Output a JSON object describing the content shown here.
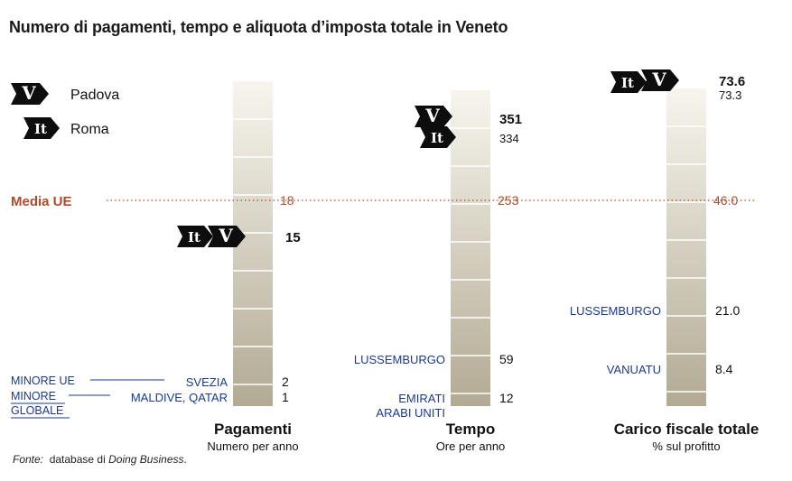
{
  "title": "Numero di pagamenti, tempo e aliquota d’imposta totale in Veneto",
  "source": {
    "label": "Fonte:",
    "text": "database di",
    "italic": "Doing Business",
    "end": "."
  },
  "legend": [
    {
      "badge": "V",
      "label": "Padova"
    },
    {
      "badge": "It",
      "label": "Roma"
    }
  ],
  "reference": {
    "label": "Media UE",
    "color": "#b04a2a"
  },
  "colors": {
    "label_blue": "#1a3a8c",
    "reference": "#b04a2a",
    "bar_top": "#f7f5ee",
    "bar_bottom": "#b2aa93"
  },
  "chart_data": [
    {
      "type": "bar",
      "title": "Pagamenti",
      "subtitle": "Numero per anno",
      "padova": 15,
      "roma": 15,
      "badge_value": "15",
      "ue_average": 18,
      "ue_label": "18",
      "rows": [
        {
          "name": "SVEZIA",
          "value": 2,
          "label": "2",
          "group": "MINORE UE"
        },
        {
          "name": "MALDIVE, QATAR",
          "value": 1,
          "label": "1",
          "group": "MINORE GLOBALE"
        }
      ],
      "group_labels": [
        "MINORE UE",
        "MINORE GLOBALE"
      ]
    },
    {
      "type": "bar",
      "title": "Tempo",
      "subtitle": "Ore per anno",
      "padova": 351,
      "roma": 334,
      "padova_label": "351",
      "roma_label": "334",
      "ue_average": 253,
      "ue_label": "253",
      "rows": [
        {
          "name": "LUSSEMBURGO",
          "value": 59,
          "label": "59"
        },
        {
          "name": "EMIRATI ARABI UNITI",
          "lines": [
            "EMIRATI",
            "ARABI UNITI"
          ],
          "value": 12,
          "label": "12"
        }
      ]
    },
    {
      "type": "bar",
      "title": "Carico fiscale totale",
      "subtitle": "% sul profitto",
      "padova": 73.6,
      "roma": 73.3,
      "padova_label": "73.6",
      "roma_label": "73.3",
      "ue_average": 46.0,
      "ue_label": "46.0",
      "rows": [
        {
          "name": "LUSSEMBURGO",
          "value": 21.0,
          "label": "21.0"
        },
        {
          "name": "VANUATU",
          "value": 8.4,
          "label": "8.4"
        }
      ]
    }
  ]
}
